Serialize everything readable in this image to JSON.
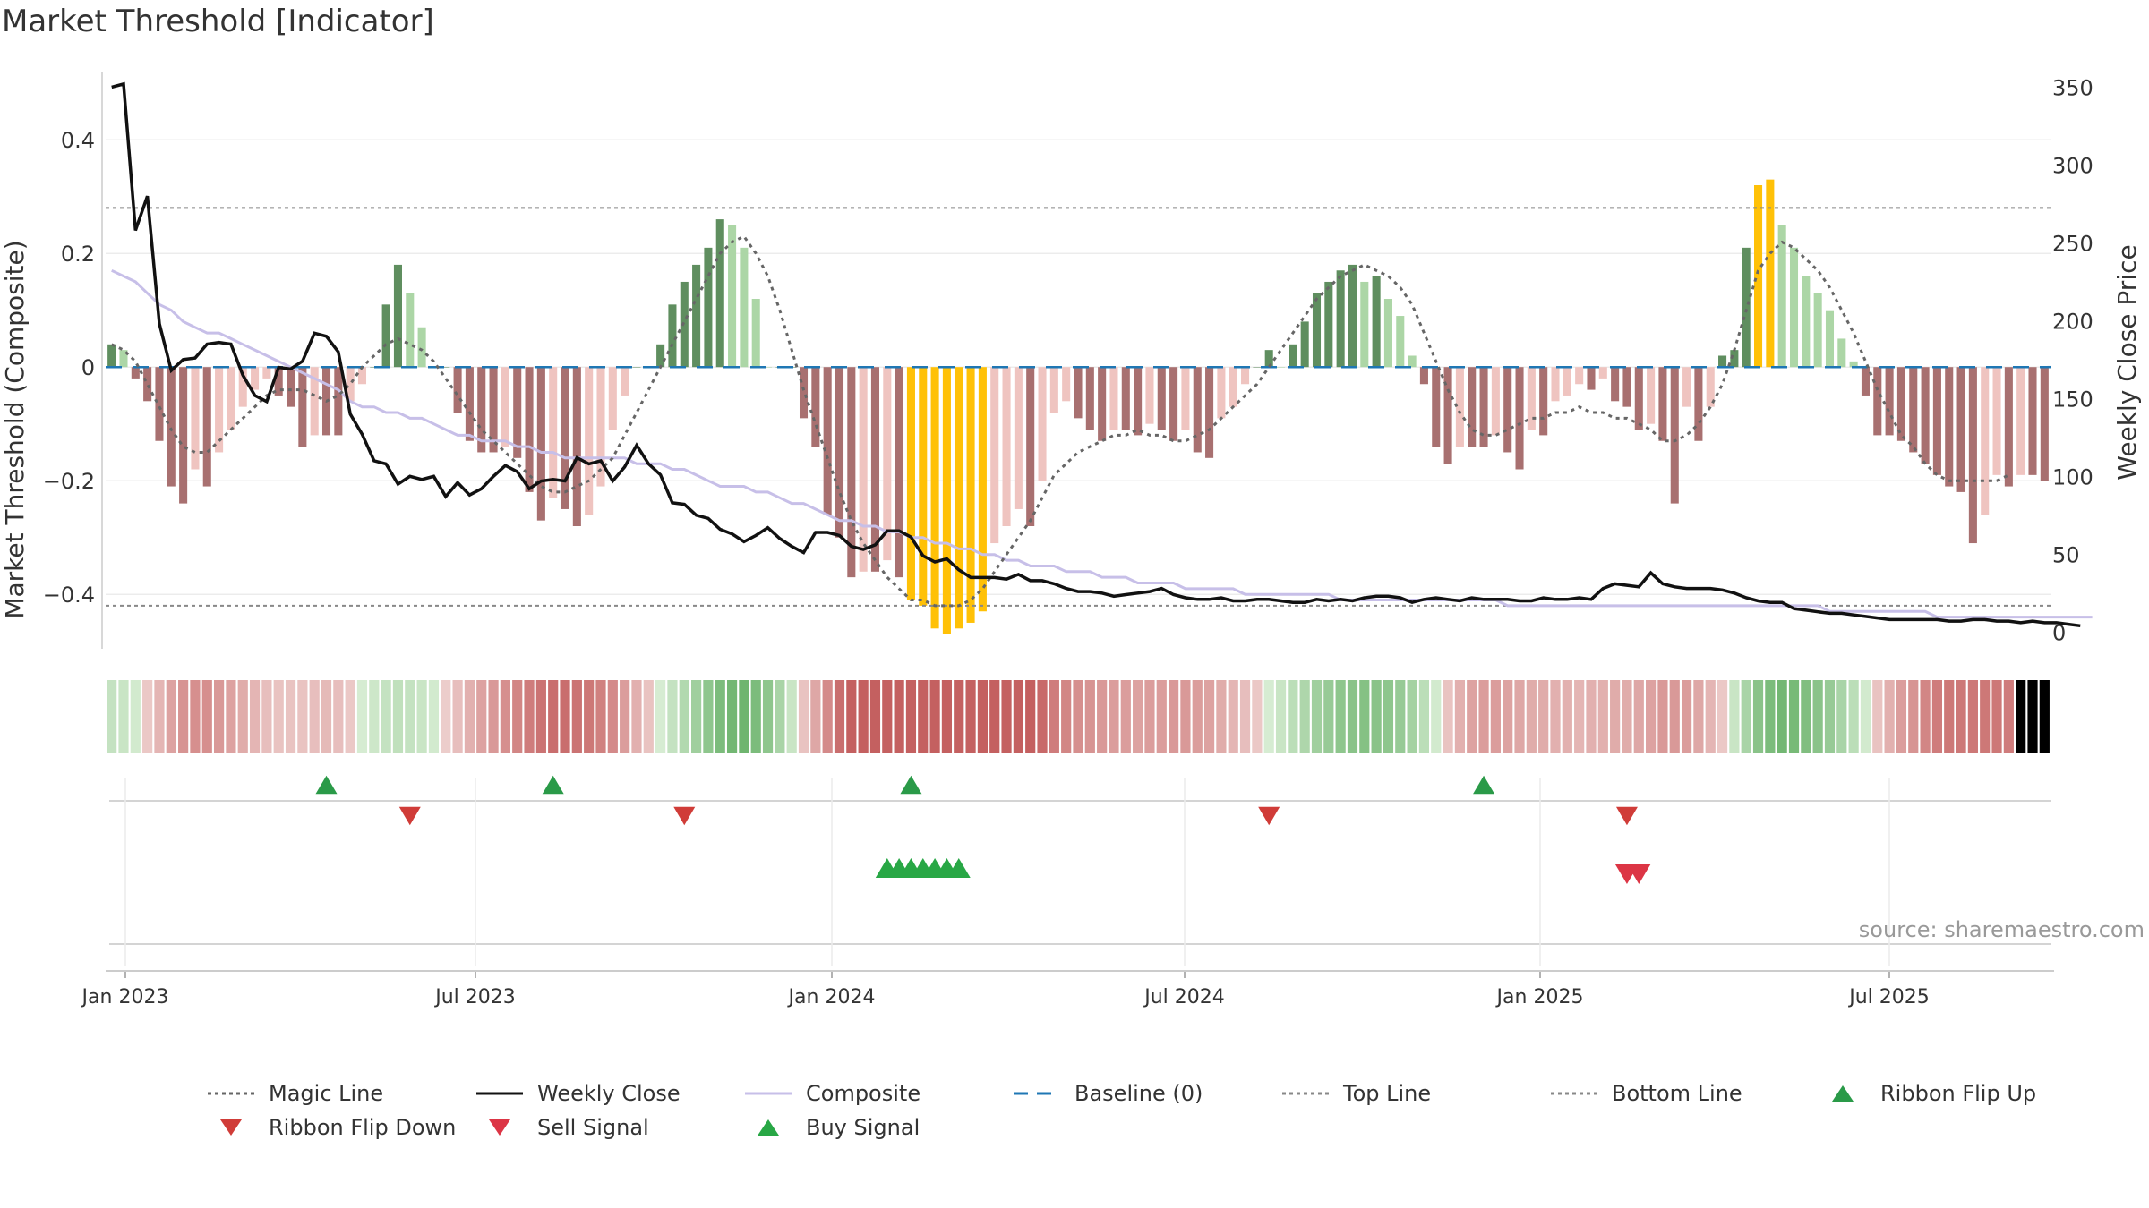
{
  "chart_data": {
    "title": "Market Threshold [Indicator]",
    "type": "bar",
    "ylabel_left": "Market Threshold (Composite)",
    "ylabel_right": "Weekly Close Price",
    "source_note": "source: sharemaestro.com",
    "x_ticks": [
      "Jan 2023",
      "Jul 2023",
      "Jan 2024",
      "Jul 2024",
      "Jan 2025",
      "Jul 2025"
    ],
    "y_ticks_left": [
      "0.4",
      "0.2",
      "0",
      "−0.2",
      "−0.4"
    ],
    "y_ticks_right": [
      "350",
      "300",
      "250",
      "200",
      "150",
      "100",
      "50",
      "0"
    ],
    "ylim_left": [
      -0.48,
      0.52
    ],
    "ylim_right": [
      -5,
      360
    ],
    "top_line": 0.28,
    "bottom_line": -0.42,
    "baseline": 0,
    "grid": true,
    "composite_bars": [
      0.04,
      0.03,
      -0.02,
      -0.06,
      -0.13,
      -0.21,
      -0.24,
      -0.18,
      -0.21,
      -0.15,
      -0.11,
      -0.07,
      -0.04,
      -0.02,
      -0.05,
      -0.07,
      -0.14,
      -0.12,
      -0.12,
      -0.12,
      -0.06,
      -0.03,
      0.0,
      0.11,
      0.18,
      0.13,
      0.07,
      0.0,
      0.0,
      -0.08,
      -0.13,
      -0.15,
      -0.15,
      -0.14,
      -0.16,
      -0.22,
      -0.27,
      -0.23,
      -0.25,
      -0.28,
      -0.26,
      -0.21,
      -0.11,
      -0.05,
      0.0,
      0.0,
      0.04,
      0.11,
      0.15,
      0.18,
      0.21,
      0.26,
      0.25,
      0.21,
      0.12,
      0.0,
      0.0,
      0.0,
      -0.09,
      -0.14,
      -0.26,
      -0.3,
      -0.37,
      -0.36,
      -0.36,
      -0.34,
      -0.37,
      -0.41,
      -0.42,
      -0.46,
      -0.47,
      -0.46,
      -0.45,
      -0.43,
      -0.31,
      -0.28,
      -0.25,
      -0.28,
      -0.2,
      -0.08,
      -0.06,
      -0.09,
      -0.11,
      -0.13,
      -0.11,
      -0.11,
      -0.12,
      -0.1,
      -0.11,
      -0.13,
      -0.11,
      -0.15,
      -0.16,
      -0.09,
      -0.07,
      -0.03,
      0.0,
      0.03,
      0.0,
      0.04,
      0.08,
      0.13,
      0.15,
      0.17,
      0.18,
      0.15,
      0.16,
      0.12,
      0.09,
      0.02,
      -0.03,
      -0.14,
      -0.17,
      -0.14,
      -0.14,
      -0.14,
      -0.12,
      -0.15,
      -0.18,
      -0.11,
      -0.12,
      -0.06,
      -0.05,
      -0.03,
      -0.04,
      -0.02,
      -0.06,
      -0.07,
      -0.11,
      -0.1,
      -0.13,
      -0.24,
      -0.07,
      -0.13,
      -0.07,
      0.02,
      0.03,
      0.21,
      0.32,
      0.33,
      0.25,
      0.21,
      0.16,
      0.13,
      0.1,
      0.05,
      0.01,
      -0.05,
      -0.12,
      -0.12,
      -0.13,
      -0.15,
      -0.17,
      -0.19,
      -0.21,
      -0.22,
      -0.31,
      -0.26,
      -0.19,
      -0.21,
      -0.19,
      -0.19,
      -0.2
    ],
    "magic_line": [
      0.04,
      0.03,
      0.01,
      -0.03,
      -0.07,
      -0.11,
      -0.14,
      -0.15,
      -0.15,
      -0.13,
      -0.11,
      -0.09,
      -0.07,
      -0.05,
      -0.04,
      -0.04,
      -0.04,
      -0.05,
      -0.06,
      -0.05,
      -0.03,
      0.0,
      0.02,
      0.04,
      0.05,
      0.04,
      0.03,
      0.01,
      -0.02,
      -0.05,
      -0.08,
      -0.11,
      -0.13,
      -0.15,
      -0.17,
      -0.19,
      -0.21,
      -0.22,
      -0.22,
      -0.21,
      -0.2,
      -0.18,
      -0.16,
      -0.12,
      -0.08,
      -0.04,
      0.0,
      0.04,
      0.08,
      0.12,
      0.16,
      0.2,
      0.22,
      0.23,
      0.2,
      0.16,
      0.1,
      0.03,
      -0.04,
      -0.1,
      -0.16,
      -0.22,
      -0.27,
      -0.31,
      -0.34,
      -0.37,
      -0.39,
      -0.41,
      -0.41,
      -0.42,
      -0.42,
      -0.42,
      -0.41,
      -0.39,
      -0.36,
      -0.33,
      -0.3,
      -0.27,
      -0.23,
      -0.19,
      -0.17,
      -0.15,
      -0.14,
      -0.13,
      -0.12,
      -0.12,
      -0.11,
      -0.12,
      -0.12,
      -0.13,
      -0.13,
      -0.12,
      -0.11,
      -0.09,
      -0.07,
      -0.05,
      -0.03,
      0.0,
      0.03,
      0.06,
      0.09,
      0.12,
      0.14,
      0.16,
      0.17,
      0.18,
      0.17,
      0.16,
      0.14,
      0.11,
      0.06,
      0.01,
      -0.04,
      -0.08,
      -0.11,
      -0.12,
      -0.12,
      -0.11,
      -0.1,
      -0.09,
      -0.09,
      -0.08,
      -0.08,
      -0.07,
      -0.08,
      -0.08,
      -0.09,
      -0.09,
      -0.1,
      -0.11,
      -0.13,
      -0.13,
      -0.12,
      -0.1,
      -0.07,
      -0.03,
      0.03,
      0.1,
      0.17,
      0.2,
      0.22,
      0.21,
      0.19,
      0.17,
      0.14,
      0.1,
      0.06,
      0.01,
      -0.04,
      -0.08,
      -0.12,
      -0.14,
      -0.17,
      -0.19,
      -0.2,
      -0.2,
      -0.2,
      -0.2,
      -0.2,
      -0.19
    ],
    "weekly_close": [
      350,
      352,
      258,
      280,
      198,
      168,
      175,
      176,
      185,
      186,
      185,
      165,
      152,
      148,
      170,
      169,
      174,
      192,
      190,
      180,
      140,
      127,
      110,
      108,
      95,
      100,
      98,
      100,
      87,
      96,
      88,
      92,
      100,
      107,
      103,
      92,
      97,
      98,
      97,
      112,
      108,
      110,
      97,
      106,
      120,
      108,
      101,
      83,
      82,
      75,
      73,
      66,
      63,
      58,
      62,
      67,
      60,
      55,
      51,
      64,
      64,
      62,
      55,
      53,
      56,
      65,
      65,
      61,
      49,
      45,
      47,
      40,
      35,
      35,
      35,
      34,
      37,
      33,
      33,
      31,
      28,
      26,
      26,
      25,
      23,
      24,
      25,
      26,
      28,
      24,
      22,
      21,
      21,
      22,
      20,
      20,
      21,
      21,
      20,
      19,
      19,
      21,
      20,
      21,
      20,
      22,
      23,
      23,
      22,
      19,
      21,
      22,
      21,
      20,
      22,
      21,
      21,
      21,
      20,
      20,
      22,
      21,
      21,
      22,
      21,
      28,
      31,
      30,
      29,
      38,
      31,
      29,
      28,
      28,
      28,
      27,
      25,
      22,
      20,
      19,
      19,
      15,
      14,
      13,
      12,
      12,
      11,
      10,
      9,
      8,
      8,
      8,
      8,
      8,
      7,
      7,
      8,
      8,
      7,
      7,
      6,
      7,
      6,
      6,
      5,
      4
    ],
    "composite": [
      0.17,
      0.16,
      0.15,
      0.13,
      0.11,
      0.1,
      0.08,
      0.07,
      0.06,
      0.06,
      0.05,
      0.04,
      0.03,
      0.02,
      0.01,
      0.0,
      -0.01,
      -0.02,
      -0.03,
      -0.04,
      -0.06,
      -0.07,
      -0.07,
      -0.08,
      -0.08,
      -0.09,
      -0.09,
      -0.1,
      -0.11,
      -0.12,
      -0.12,
      -0.13,
      -0.13,
      -0.13,
      -0.14,
      -0.14,
      -0.15,
      -0.15,
      -0.16,
      -0.16,
      -0.16,
      -0.16,
      -0.16,
      -0.16,
      -0.17,
      -0.17,
      -0.17,
      -0.18,
      -0.18,
      -0.19,
      -0.2,
      -0.21,
      -0.21,
      -0.21,
      -0.22,
      -0.22,
      -0.23,
      -0.24,
      -0.24,
      -0.25,
      -0.26,
      -0.27,
      -0.27,
      -0.28,
      -0.28,
      -0.29,
      -0.29,
      -0.3,
      -0.3,
      -0.31,
      -0.31,
      -0.32,
      -0.32,
      -0.33,
      -0.33,
      -0.34,
      -0.34,
      -0.35,
      -0.35,
      -0.35,
      -0.36,
      -0.36,
      -0.36,
      -0.37,
      -0.37,
      -0.37,
      -0.38,
      -0.38,
      -0.38,
      -0.38,
      -0.39,
      -0.39,
      -0.39,
      -0.39,
      -0.39,
      -0.4,
      -0.4,
      -0.4,
      -0.4,
      -0.4,
      -0.4,
      -0.4,
      -0.4,
      -0.41,
      -0.41,
      -0.41,
      -0.41,
      -0.41,
      -0.41,
      -0.41,
      -0.41,
      -0.41,
      -0.41,
      -0.41,
      -0.41,
      -0.41,
      -0.41,
      -0.42,
      -0.42,
      -0.42,
      -0.42,
      -0.42,
      -0.42,
      -0.42,
      -0.42,
      -0.42,
      -0.42,
      -0.42,
      -0.42,
      -0.42,
      -0.42,
      -0.42,
      -0.42,
      -0.42,
      -0.42,
      -0.42,
      -0.42,
      -0.42,
      -0.42,
      -0.42,
      -0.42,
      -0.42,
      -0.42,
      -0.42,
      -0.43,
      -0.43,
      -0.43,
      -0.43,
      -0.43,
      -0.43,
      -0.43,
      -0.43,
      -0.43,
      -0.44,
      -0.44,
      -0.44,
      -0.44,
      -0.44,
      -0.44,
      -0.44,
      -0.44,
      -0.44,
      -0.44,
      -0.44,
      -0.44,
      -0.44,
      -0.44
    ],
    "ribbon_flip_up": [
      18,
      37,
      67,
      115
    ],
    "ribbon_flip_down": [
      25,
      48,
      97,
      127
    ],
    "buy_signal": [
      65,
      66,
      67,
      68,
      69,
      70,
      71
    ],
    "sell_signal": [
      127,
      128
    ],
    "colors": {
      "bar_neg_dark": "#a87070",
      "bar_neg_light": "#efc4c0",
      "bar_pos_dark": "#5f8e5f",
      "bar_pos_light": "#acd6a6",
      "bar_extreme": "#ffc107",
      "magic_line": "#666666",
      "weekly_close": "#111111",
      "composite": "#c7bfe8",
      "baseline": "#1f77b4",
      "threshold_lines": "#888888",
      "flip_up": "#2a9a48",
      "flip_down": "#d03c38",
      "sell": "#dc3545",
      "buy": "#28a745"
    }
  },
  "legend": [
    {
      "label": "Magic Line",
      "icon": "dotted-line"
    },
    {
      "label": "Weekly Close",
      "icon": "solid-line"
    },
    {
      "label": "Composite",
      "icon": "solid-line"
    },
    {
      "label": "Baseline (0)",
      "icon": "dashed-line"
    },
    {
      "label": "Top Line",
      "icon": "dotted-line"
    },
    {
      "label": "Bottom Line",
      "icon": "dotted-line"
    },
    {
      "label": "Ribbon Flip Up",
      "icon": "triangle-up"
    },
    {
      "label": "Ribbon Flip Down",
      "icon": "triangle-down"
    },
    {
      "label": "Sell Signal",
      "icon": "triangle-down"
    },
    {
      "label": "Buy Signal",
      "icon": "triangle-up"
    }
  ]
}
